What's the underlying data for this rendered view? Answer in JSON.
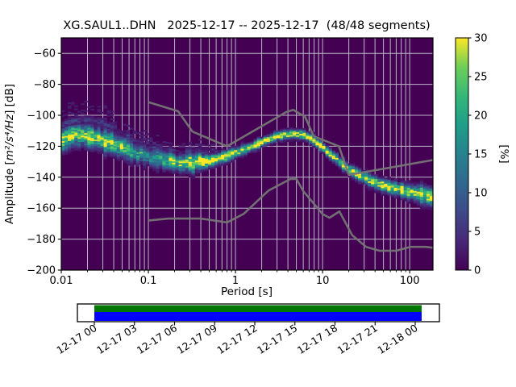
{
  "title": "XG.SAUL1..DHN   2025-12-17 -- 2025-12-17  (48/48 segments)",
  "chart_data": {
    "type": "heatmap",
    "description": "Probabilistic power spectral density (PPSD) of seismic channel XG.SAUL1..DHN with Peterson new low/high noise model reference curves",
    "xlabel": "Period [s]",
    "ylabel_prefix": "Amplitude [",
    "ylabel_math": "m²/s⁴/Hz",
    "ylabel_suffix": "] [dB]",
    "x_scale": "log",
    "xlim": [
      0.01,
      185
    ],
    "ylim": [
      -200,
      -50
    ],
    "x_ticks": {
      "values": [
        0.01,
        0.1,
        1,
        10,
        100
      ],
      "labels": [
        "0.01",
        "0.1",
        "1",
        "10",
        "100"
      ]
    },
    "y_ticks": {
      "values": [
        -60,
        -80,
        -100,
        -120,
        -140,
        -160,
        -180,
        -200
      ],
      "labels": [
        "−60",
        "−80",
        "−100",
        "−120",
        "−140",
        "−160",
        "−180",
        "−200"
      ]
    },
    "grid": true,
    "background_value_color": "#440154",
    "grid_color": "#bdb7c9",
    "colorbar": {
      "label": "[%]",
      "min": 0,
      "max": 30,
      "ticks": [
        0,
        5,
        10,
        15,
        20,
        25,
        30
      ],
      "colormap": "viridis",
      "viridis_stops": [
        "#440154",
        "#482878",
        "#3e4989",
        "#31688e",
        "#26828e",
        "#1f9e89",
        "#35b779",
        "#6ece58",
        "#fde725"
      ]
    },
    "psd_ridge": {
      "comment": "mode of PSD probability distribution: [period s, dB]",
      "points": [
        [
          0.01,
          -115.5
        ],
        [
          0.012,
          -114.0
        ],
        [
          0.015,
          -112.8
        ],
        [
          0.02,
          -112.8
        ],
        [
          0.026,
          -114.5
        ],
        [
          0.034,
          -117.5
        ],
        [
          0.05,
          -121.0
        ],
        [
          0.07,
          -124.0
        ],
        [
          0.1,
          -126.5
        ],
        [
          0.14,
          -128.5
        ],
        [
          0.2,
          -130.0
        ],
        [
          0.3,
          -130.8
        ],
        [
          0.45,
          -130.0
        ],
        [
          0.6,
          -128.5
        ],
        [
          0.8,
          -126.3
        ],
        [
          1.0,
          -124.0
        ],
        [
          1.5,
          -120.8
        ],
        [
          2.2,
          -116.5
        ],
        [
          3.0,
          -113.8
        ],
        [
          4.0,
          -112.2
        ],
        [
          5.0,
          -112.0
        ],
        [
          6.0,
          -112.8
        ],
        [
          7.0,
          -114.5
        ],
        [
          8.5,
          -117.5
        ],
        [
          10.0,
          -121.0
        ],
        [
          12.0,
          -124.5
        ],
        [
          15.0,
          -129.0
        ],
        [
          20.0,
          -135.0
        ],
        [
          27.0,
          -139.0
        ],
        [
          35.0,
          -142.0
        ],
        [
          50.0,
          -145.5
        ],
        [
          70.0,
          -147.5
        ],
        [
          100.0,
          -149.5
        ],
        [
          140.0,
          -151.5
        ],
        [
          185.0,
          -153.0
        ]
      ],
      "spread_sigma_db": [
        [
          0.01,
          4.5
        ],
        [
          0.03,
          4.0
        ],
        [
          0.1,
          3.5
        ],
        [
          0.3,
          3.0
        ],
        [
          0.7,
          2.0
        ],
        [
          1.5,
          1.6
        ],
        [
          5.0,
          1.6
        ],
        [
          12.0,
          1.8
        ],
        [
          30.0,
          2.0
        ],
        [
          80.0,
          2.6
        ],
        [
          185,
          3.2
        ]
      ],
      "peak_percent": [
        [
          0.01,
          30
        ],
        [
          0.05,
          28
        ],
        [
          0.08,
          17
        ],
        [
          0.15,
          19
        ],
        [
          0.22,
          28
        ],
        [
          0.3,
          30
        ],
        [
          185,
          30
        ]
      ]
    },
    "secondary_band": {
      "comment": "faint high-frequency haze arc: [period s, dB]",
      "points": [
        [
          0.01,
          -106.0
        ],
        [
          0.014,
          -103.5
        ],
        [
          0.02,
          -102.5
        ],
        [
          0.028,
          -104.0
        ],
        [
          0.042,
          -108.0
        ]
      ],
      "sigma_db": 1.5,
      "peak_percent": 6
    },
    "noise_models": {
      "color": "#757575",
      "nlnm": [
        [
          0.1,
          -168.0
        ],
        [
          0.17,
          -166.7
        ],
        [
          0.4,
          -166.7
        ],
        [
          0.8,
          -169.2
        ],
        [
          1.24,
          -163.7
        ],
        [
          2.4,
          -148.6
        ],
        [
          4.3,
          -141.1
        ],
        [
          5.0,
          -141.1
        ],
        [
          6.0,
          -149.0
        ],
        [
          10.0,
          -163.8
        ],
        [
          12.0,
          -166.2
        ],
        [
          15.6,
          -162.1
        ],
        [
          21.9,
          -177.5
        ],
        [
          31.6,
          -185.0
        ],
        [
          45.0,
          -187.5
        ],
        [
          70.0,
          -187.5
        ],
        [
          101.0,
          -185.0
        ],
        [
          154.0,
          -185.0
        ],
        [
          185.0,
          -185.6
        ]
      ],
      "nhnm": [
        [
          0.1,
          -91.5
        ],
        [
          0.22,
          -97.4
        ],
        [
          0.32,
          -110.5
        ],
        [
          0.8,
          -120.0
        ],
        [
          3.8,
          -98.0
        ],
        [
          4.6,
          -96.5
        ],
        [
          6.3,
          -101.0
        ],
        [
          7.9,
          -113.5
        ],
        [
          15.4,
          -120.0
        ],
        [
          20.0,
          -138.5
        ],
        [
          185.0,
          -128.9
        ]
      ]
    },
    "timeline": {
      "tick_labels": [
        "12-17 00",
        "12-17 03",
        "12-17 06",
        "12-17 09",
        "12-17 12",
        "12-17 15",
        "12-17 18",
        "12-17 21",
        "12-18 00"
      ],
      "top_strip_color": "#007700",
      "bottom_strip_color": "#0000ff",
      "coverage_start_frac": 0.0,
      "coverage_end_frac": 1.02
    }
  }
}
